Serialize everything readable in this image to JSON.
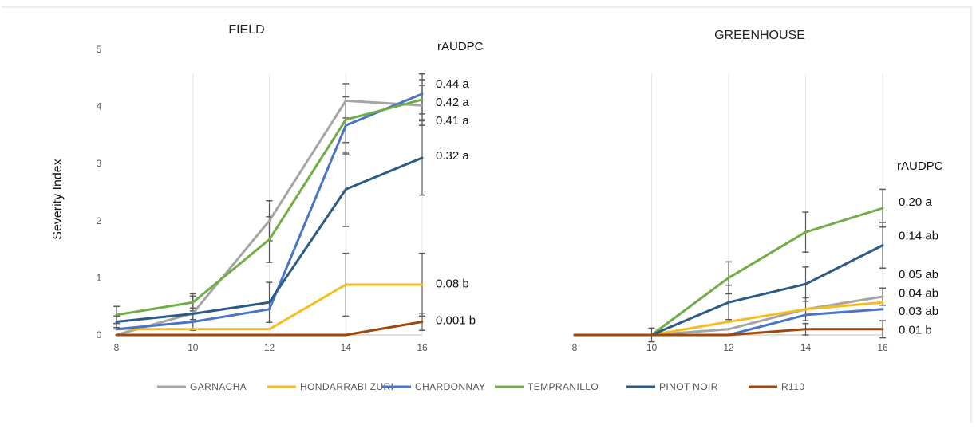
{
  "chart_data": {
    "type": "line",
    "ylabel": "Severity Index",
    "legend_position": "bottom",
    "series_styles": [
      {
        "name": "GARNACHA",
        "color": "#a5a5a5"
      },
      {
        "name": "HONDARRABI ZURI",
        "color": "#f5bd1f"
      },
      {
        "name": "CHARDONNAY",
        "color": "#4a74c4"
      },
      {
        "name": "TEMPRANILLO",
        "color": "#70ad47"
      },
      {
        "name": "PINOT NOIR",
        "color": "#2a5a86"
      },
      {
        "name": "R110",
        "color": "#9e480e"
      }
    ],
    "panels": [
      {
        "title": "FIELD",
        "rlabel_header": "rAUDPC",
        "x": [
          8,
          10,
          12,
          14,
          16
        ],
        "ylim": [
          0,
          5
        ],
        "y_ticks": [
          "0",
          "1",
          "2",
          "3",
          "4",
          "5"
        ],
        "series": [
          {
            "name": "GARNACHA",
            "values": [
              0.0,
              0.38,
              2.0,
              4.1,
              4.02
            ],
            "errors": [
              0,
              0.3,
              0.35,
              0.3,
              0.35
            ]
          },
          {
            "name": "HONDARRABI ZURI",
            "values": [
              0.1,
              0.1,
              0.1,
              0.88,
              0.88
            ],
            "errors": [
              0,
              0,
              0,
              0.55,
              0.55
            ]
          },
          {
            "name": "CHARDONNAY",
            "values": [
              0.1,
              0.23,
              0.45,
              3.67,
              4.22
            ],
            "errors": [
              0,
              0,
              0,
              0.5,
              0.35
            ]
          },
          {
            "name": "TEMPRANILLO",
            "values": [
              0.35,
              0.57,
              1.67,
              3.77,
              4.12
            ],
            "errors": [
              0.15,
              0.15,
              0.4,
              0.4,
              0.35
            ]
          },
          {
            "name": "PINOT NOIR",
            "values": [
              0.23,
              0.37,
              0.57,
              2.55,
              3.1
            ],
            "errors": [
              0.1,
              0.1,
              0.35,
              0.65,
              0.65
            ]
          },
          {
            "name": "R110",
            "values": [
              0.0,
              0.0,
              0.0,
              0.0,
              0.23
            ],
            "errors": [
              0,
              0,
              0,
              0,
              0.15
            ]
          }
        ],
        "rlabels": [
          {
            "text": "0.44  a",
            "y": 4.4
          },
          {
            "text": "0.42  a",
            "y": 4.08
          },
          {
            "text": "0.41  a",
            "y": 3.76
          },
          {
            "text": "0.32  a",
            "y": 3.14
          },
          {
            "text": "0.08    b",
            "y": 0.9
          },
          {
            "text": "0.001  b",
            "y": 0.26
          }
        ]
      },
      {
        "title": "GREENHOUSE",
        "rlabel_header": "rAUDPC",
        "x": [
          8,
          10,
          12,
          14,
          16
        ],
        "ylim": [
          0,
          5
        ],
        "y_ticks": [],
        "series": [
          {
            "name": "GARNACHA",
            "values": [
              0.0,
              0.0,
              0.1,
              0.45,
              0.67
            ],
            "errors": [
              0,
              0,
              0,
              0.2,
              0.15
            ]
          },
          {
            "name": "HONDARRABI ZURI",
            "values": [
              0.0,
              0.0,
              0.23,
              0.45,
              0.57
            ],
            "errors": [
              0,
              0,
              0,
              0,
              0
            ]
          },
          {
            "name": "CHARDONNAY",
            "values": [
              0.0,
              0.0,
              0.0,
              0.35,
              0.45
            ],
            "errors": [
              0,
              0,
              0,
              0,
              0
            ]
          },
          {
            "name": "TEMPRANILLO",
            "values": [
              0.0,
              0.0,
              1.0,
              1.8,
              2.22
            ],
            "errors": [
              0,
              0.12,
              0.28,
              0.35,
              0.33
            ]
          },
          {
            "name": "PINOT NOIR",
            "values": [
              0.0,
              0.0,
              0.57,
              0.89,
              1.57
            ],
            "errors": [
              0,
              0,
              0.3,
              0.3,
              0.4
            ]
          },
          {
            "name": "R110",
            "values": [
              0.0,
              0.0,
              0.0,
              0.1,
              0.1
            ],
            "errors": [
              0,
              0,
              0,
              0.1,
              0.15
            ]
          }
        ],
        "rlabels": [
          {
            "text": "0.20  a",
            "y": 2.33
          },
          {
            "text": "0.14  ab",
            "y": 1.74
          },
          {
            "text": "0.05  ab",
            "y": 1.06
          },
          {
            "text": "0.04  ab",
            "y": 0.73
          },
          {
            "text": "0.03  ab",
            "y": 0.42
          },
          {
            "text": "0.01   b",
            "y": 0.09
          }
        ]
      }
    ]
  }
}
